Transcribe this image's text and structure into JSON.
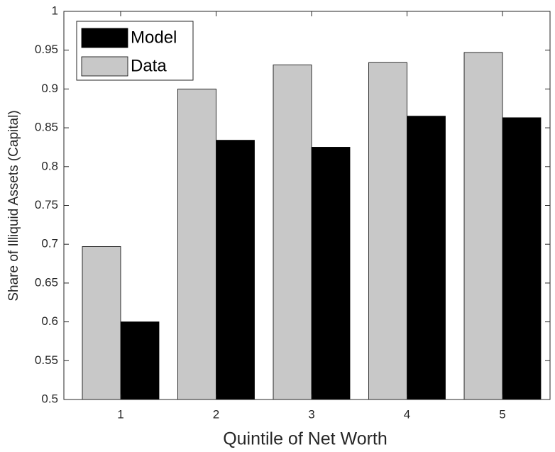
{
  "chart_data": {
    "type": "bar",
    "xlabel": "Quintile of Net Worth",
    "ylabel": "Share of Illiquid Assets (Capital)",
    "categories": [
      "1",
      "2",
      "3",
      "4",
      "5"
    ],
    "series": [
      {
        "name": "Model",
        "color": "#000000",
        "values": [
          0.6,
          0.834,
          0.825,
          0.865,
          0.863
        ]
      },
      {
        "name": "Data",
        "color": "#c8c8c8",
        "values": [
          0.697,
          0.9,
          0.931,
          0.934,
          0.947
        ]
      }
    ],
    "ylim": [
      0.5,
      1
    ],
    "yticks": [
      0.5,
      0.55,
      0.6,
      0.65,
      0.7,
      0.75,
      0.8,
      0.85,
      0.9,
      0.95,
      1
    ],
    "legend": "northwest"
  }
}
